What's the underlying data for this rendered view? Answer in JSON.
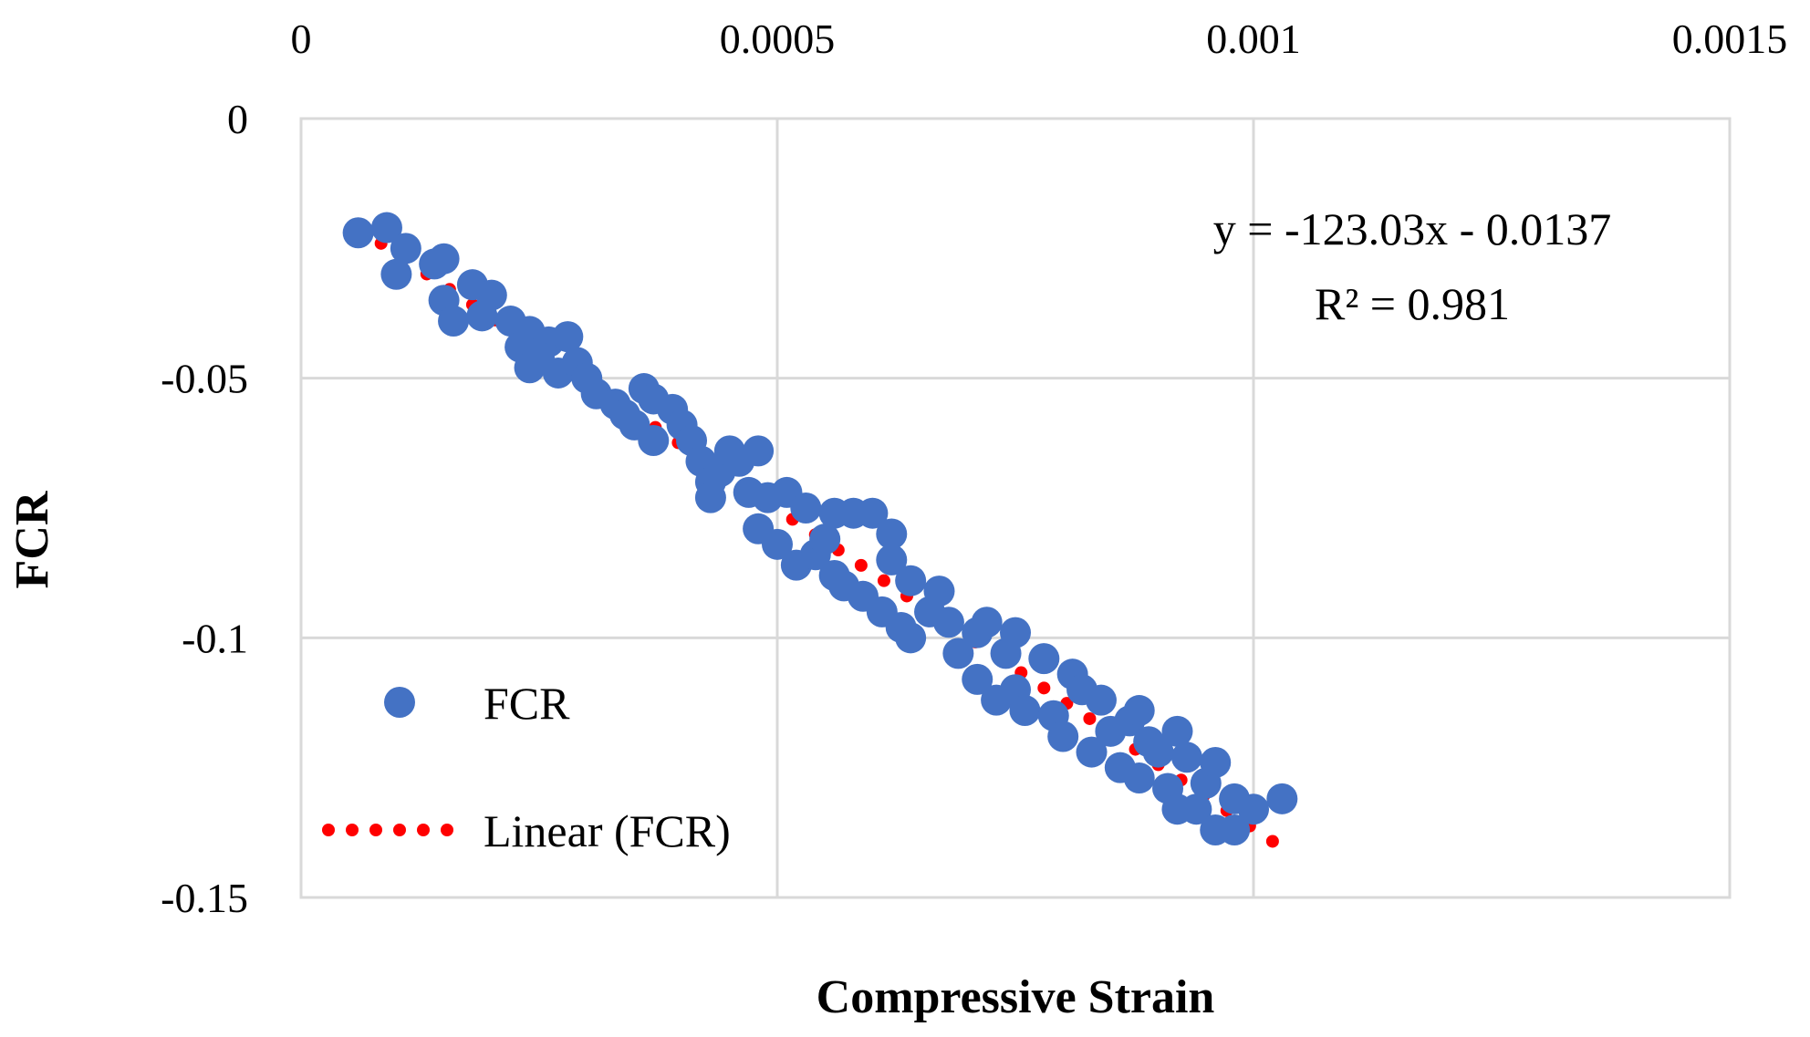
{
  "chart_data": {
    "type": "scatter",
    "title": "",
    "xlabel": "Compressive Strain",
    "ylabel": "FCR",
    "xlim": [
      0,
      0.0015
    ],
    "ylim": [
      -0.15,
      0
    ],
    "x_ticks": [
      {
        "value": 0,
        "label": "0"
      },
      {
        "value": 0.0005,
        "label": "0.0005"
      },
      {
        "value": 0.001,
        "label": "0.001"
      },
      {
        "value": 0.0015,
        "label": "0.0015"
      }
    ],
    "y_ticks": [
      {
        "value": 0,
        "label": "0"
      },
      {
        "value": -0.05,
        "label": "-0.05"
      },
      {
        "value": -0.1,
        "label": "-0.1"
      },
      {
        "value": -0.15,
        "label": "-0.15"
      }
    ],
    "x_axis_position": "top",
    "grid": true,
    "colors": {
      "points": "#4472C4",
      "trendline": "#FF0000",
      "grid": "#D9D9D9"
    },
    "legend": {
      "position": "bottom-left",
      "entries": [
        {
          "label": "FCR",
          "marker": "circle"
        },
        {
          "label": "Linear (FCR)",
          "marker": "dotted-line"
        }
      ]
    },
    "series": [
      {
        "name": "FCR",
        "points": [
          [
            6e-05,
            -0.022
          ],
          [
            9e-05,
            -0.021
          ],
          [
            0.00011,
            -0.025
          ],
          [
            0.00014,
            -0.028
          ],
          [
            0.0001,
            -0.03
          ],
          [
            0.00015,
            -0.035
          ],
          [
            0.00016,
            -0.039
          ],
          [
            0.00015,
            -0.027
          ],
          [
            0.00018,
            -0.032
          ],
          [
            0.0002,
            -0.034
          ],
          [
            0.00019,
            -0.038
          ],
          [
            0.00022,
            -0.039
          ],
          [
            0.00024,
            -0.041
          ],
          [
            0.00026,
            -0.043
          ],
          [
            0.00025,
            -0.046
          ],
          [
            0.00023,
            -0.044
          ],
          [
            0.00024,
            -0.048
          ],
          [
            0.00027,
            -0.049
          ],
          [
            0.00028,
            -0.042
          ],
          [
            0.00029,
            -0.047
          ],
          [
            0.0003,
            -0.05
          ],
          [
            0.00031,
            -0.053
          ],
          [
            0.00033,
            -0.055
          ],
          [
            0.00034,
            -0.057
          ],
          [
            0.00036,
            -0.052
          ],
          [
            0.00037,
            -0.054
          ],
          [
            0.00035,
            -0.059
          ],
          [
            0.00037,
            -0.062
          ],
          [
            0.00039,
            -0.056
          ],
          [
            0.0004,
            -0.059
          ],
          [
            0.00041,
            -0.062
          ],
          [
            0.00042,
            -0.066
          ],
          [
            0.00043,
            -0.07
          ],
          [
            0.00043,
            -0.073
          ],
          [
            0.00044,
            -0.068
          ],
          [
            0.00045,
            -0.064
          ],
          [
            0.00046,
            -0.066
          ],
          [
            0.00048,
            -0.064
          ],
          [
            0.00047,
            -0.072
          ],
          [
            0.00049,
            -0.073
          ],
          [
            0.00051,
            -0.072
          ],
          [
            0.00053,
            -0.075
          ],
          [
            0.00048,
            -0.079
          ],
          [
            0.0005,
            -0.082
          ],
          [
            0.00052,
            -0.086
          ],
          [
            0.00054,
            -0.084
          ],
          [
            0.00055,
            -0.081
          ],
          [
            0.00056,
            -0.076
          ],
          [
            0.00058,
            -0.076
          ],
          [
            0.0006,
            -0.076
          ],
          [
            0.00062,
            -0.08
          ],
          [
            0.00062,
            -0.085
          ],
          [
            0.00056,
            -0.088
          ],
          [
            0.00057,
            -0.09
          ],
          [
            0.00059,
            -0.092
          ],
          [
            0.00061,
            -0.095
          ],
          [
            0.00063,
            -0.098
          ],
          [
            0.00064,
            -0.1
          ],
          [
            0.00064,
            -0.089
          ],
          [
            0.00066,
            -0.095
          ],
          [
            0.00067,
            -0.091
          ],
          [
            0.00068,
            -0.097
          ],
          [
            0.00069,
            -0.103
          ],
          [
            0.00071,
            -0.099
          ],
          [
            0.00072,
            -0.097
          ],
          [
            0.00071,
            -0.108
          ],
          [
            0.00073,
            -0.112
          ],
          [
            0.00074,
            -0.103
          ],
          [
            0.00075,
            -0.099
          ],
          [
            0.00075,
            -0.11
          ],
          [
            0.00076,
            -0.114
          ],
          [
            0.00078,
            -0.104
          ],
          [
            0.00079,
            -0.115
          ],
          [
            0.0008,
            -0.119
          ],
          [
            0.00081,
            -0.107
          ],
          [
            0.00082,
            -0.11
          ],
          [
            0.00083,
            -0.122
          ],
          [
            0.00084,
            -0.112
          ],
          [
            0.00085,
            -0.118
          ],
          [
            0.00086,
            -0.125
          ],
          [
            0.00087,
            -0.116
          ],
          [
            0.00088,
            -0.114
          ],
          [
            0.00088,
            -0.127
          ],
          [
            0.00089,
            -0.12
          ],
          [
            0.0009,
            -0.122
          ],
          [
            0.00091,
            -0.129
          ],
          [
            0.00092,
            -0.118
          ],
          [
            0.00093,
            -0.123
          ],
          [
            0.00092,
            -0.133
          ],
          [
            0.00094,
            -0.133
          ],
          [
            0.00095,
            -0.128
          ],
          [
            0.00096,
            -0.124
          ],
          [
            0.00096,
            -0.137
          ],
          [
            0.00098,
            -0.131
          ],
          [
            0.00098,
            -0.137
          ],
          [
            0.001,
            -0.133
          ],
          [
            0.00103,
            -0.131
          ]
        ]
      }
    ],
    "trendline": {
      "name": "Linear (FCR)",
      "slope": -123.03,
      "intercept": -0.0137,
      "x_range": [
        6e-05,
        0.00102
      ],
      "equation_label": "y = -123.03x - 0.0137",
      "r2_label": "R² = 0.981"
    }
  }
}
